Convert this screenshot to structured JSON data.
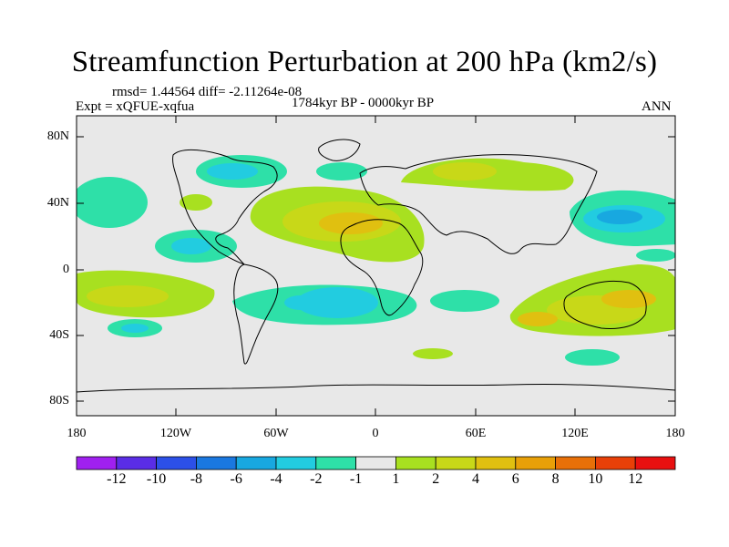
{
  "title": "Streamfunction Perturbation at 200 hPa (km2/s)",
  "stats_line": "rmsd= 1.44564 diff= -2.11264e-08",
  "experiment_label": "Expt = xQFUE-xqfua",
  "period_label": "1784kyr BP - 0000kyr BP",
  "season_label": "ANN",
  "lat_ticks": [
    "80N",
    "40N",
    "0",
    "40S",
    "80S"
  ],
  "lon_ticks": [
    "180",
    "120W",
    "60W",
    "0",
    "60E",
    "120E",
    "180"
  ],
  "colorbar": {
    "labels": [
      "-12",
      "-10",
      "-8",
      "-6",
      "-4",
      "-2",
      "-1",
      "1",
      "2",
      "4",
      "6",
      "8",
      "10",
      "12"
    ],
    "colors": [
      "#a020f0",
      "#5a2de6",
      "#2c50e8",
      "#1a78e0",
      "#18a8e0",
      "#22cce0",
      "#2ee0a8",
      "#e8e8e8",
      "#a8e020",
      "#c8d818",
      "#e0c010",
      "#e8a008",
      "#e87008",
      "#e84008",
      "#e81010"
    ]
  },
  "colors": {
    "ocean_bg": "#e8e8e8",
    "neg1": "#2ee0a8",
    "neg2": "#22cce0",
    "neg3": "#18a8e0",
    "pos1": "#a8e020",
    "pos2": "#c8d818",
    "pos3": "#e0c010",
    "pos4": "#e8a008"
  }
}
